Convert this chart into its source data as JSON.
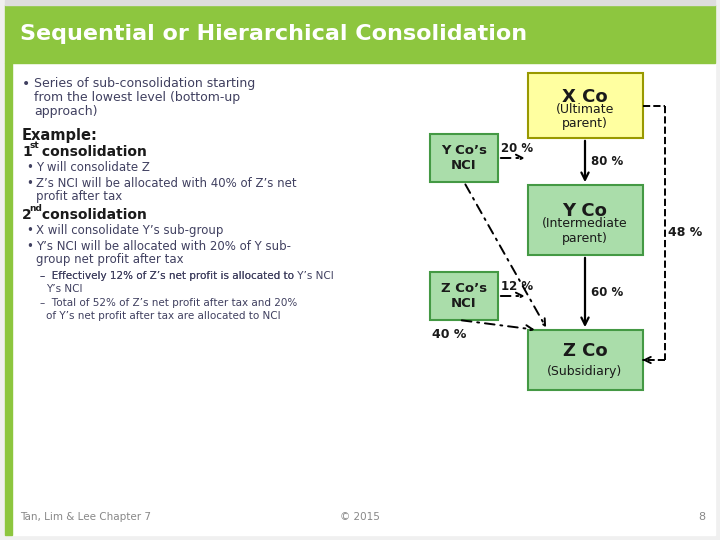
{
  "title": "Sequential or Hierarchical Consolidation",
  "title_bg": "#8DC63F",
  "title_color": "#FFFFFF",
  "slide_bg": "#F0F0F0",
  "content_bg": "#FFFFFF",
  "left_bar_color": "#8DC63F",
  "bullet_text_line1": "Series of sub-consolidation starting",
  "bullet_text_line2": "from the lowest level (bottom-up",
  "bullet_text_line3": "approach)",
  "example_label": "Example:",
  "first_consol_bullets": [
    "Y will consolidate Z",
    "Z’s NCI will be allocated with 40% of Z’s net profit after tax"
  ],
  "second_consol_bullets": [
    "X will consolidate Y’s sub-group",
    "Y’s NCI will be allocated with 20% of Y sub-group net profit after tax"
  ],
  "second_consol_sub": [
    "–  Effectively 12% of Z’s net profit is allocated to Y’s NCI",
    "–  Total of 52% of Z’s net profit after tax and 20% of Y’s net profit after tax are allocated to NCI"
  ],
  "footer_left": "Tan, Lim & Lee Chapter 7",
  "footer_right": "© 2015",
  "page_num": "8",
  "box_x_co_label": "X Co",
  "box_x_co_sub": "(Ultimate\nparent)",
  "box_x_co_color": "#FFFFA0",
  "box_x_co_border": "#999900",
  "box_y_co_label": "Y Co",
  "box_y_co_sub": "(Intermediate\nparent)",
  "box_y_co_color": "#AADDAA",
  "box_y_co_border": "#449944",
  "box_z_co_label": "Z Co",
  "box_z_co_sub": "(Subsidiary)",
  "box_z_co_color": "#AADDAA",
  "box_z_co_border": "#449944",
  "box_y_nci_label": "Y Co’s\nNCI",
  "box_y_nci_color": "#AADDAA",
  "box_y_nci_border": "#449944",
  "box_z_nci_label": "Z Co’s\nNCI",
  "box_z_nci_color": "#AADDAA",
  "box_z_nci_border": "#449944",
  "pct_80": "80 %",
  "pct_20": "20 %",
  "pct_48": "48 %",
  "pct_60": "60 %",
  "pct_12": "12 %",
  "pct_40": "40 %",
  "text_color": "#404060",
  "dark_text": "#1a1a1a",
  "gray_text": "#888888"
}
